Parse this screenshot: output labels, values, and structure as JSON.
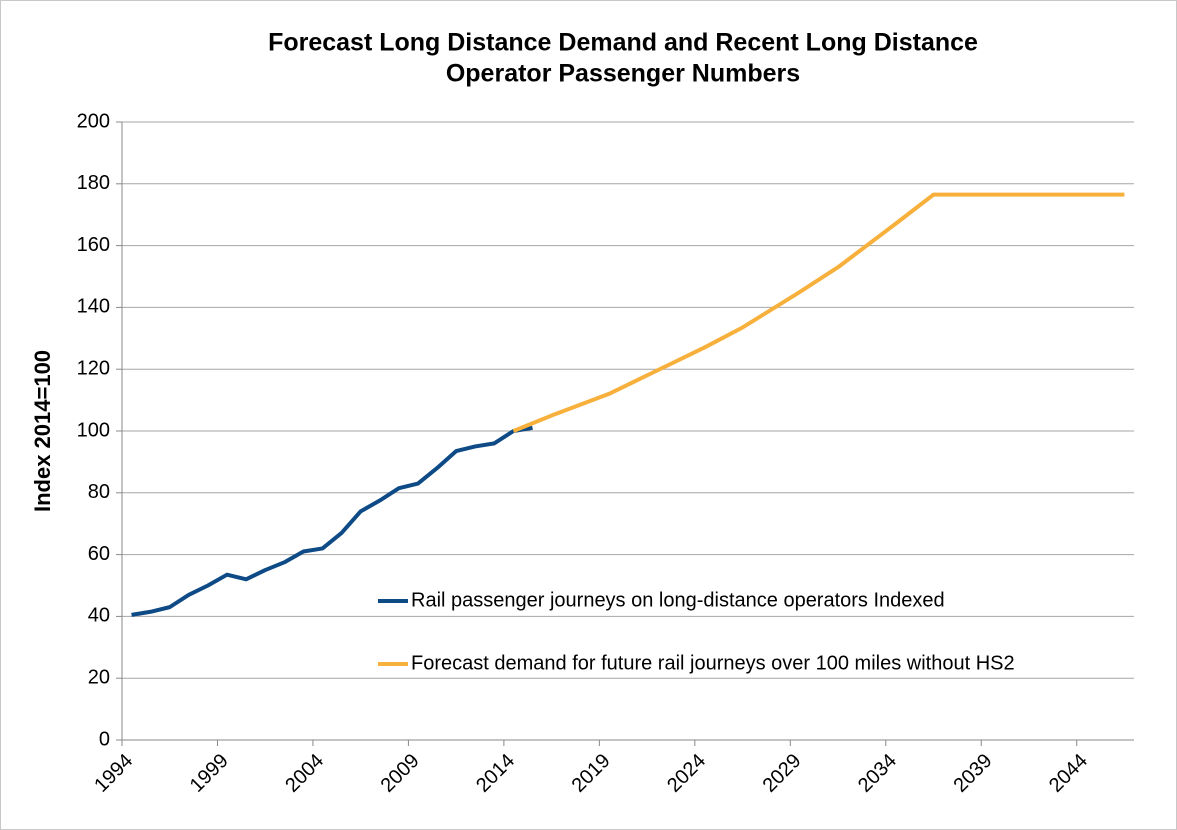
{
  "chart_data": {
    "type": "line",
    "title": [
      "Forecast Long Distance Demand and Recent Long Distance",
      "Operator Passenger Numbers"
    ],
    "y_label": "Index 2014=100",
    "xlim": [
      1994,
      2047
    ],
    "xticks": [
      1994,
      1999,
      2004,
      2009,
      2014,
      2019,
      2024,
      2029,
      2034,
      2039,
      2044
    ],
    "ylim": [
      0,
      200
    ],
    "yticks": [
      0,
      20,
      40,
      60,
      80,
      100,
      120,
      140,
      160,
      180,
      200
    ],
    "grid": true,
    "legend": "inside",
    "series": [
      {
        "name": "Rail passenger journeys on long-distance operators Indexed",
        "color": "#0e4a86",
        "x": [
          1994.5,
          1995.5,
          1996.5,
          1997.5,
          1998.5,
          1999.5,
          2000.5,
          2001.5,
          2002.5,
          2003.5,
          2004.5,
          2005.5,
          2006.5,
          2007.5,
          2008.5,
          2009.5,
          2010.5,
          2011.5,
          2012.5,
          2013.5,
          2014.5,
          2015.5
        ],
        "values": [
          40.5,
          41.5,
          43,
          47,
          50,
          53.5,
          52,
          55,
          57.5,
          61,
          62,
          67,
          74,
          77.5,
          81.5,
          83,
          88,
          93.5,
          95,
          96,
          100,
          101
        ]
      },
      {
        "name": "Forecast demand for future rail journeys over 100 miles without HS2",
        "color": "#f7b03c",
        "x": [
          2014.5,
          2016.5,
          2019.5,
          2021.5,
          2024.5,
          2026.5,
          2029.5,
          2031.5,
          2034.5,
          2036.5,
          2046.5
        ],
        "values": [
          100,
          105,
          112,
          118,
          127,
          133.5,
          145,
          153,
          167,
          176.5,
          176.5
        ]
      }
    ]
  }
}
